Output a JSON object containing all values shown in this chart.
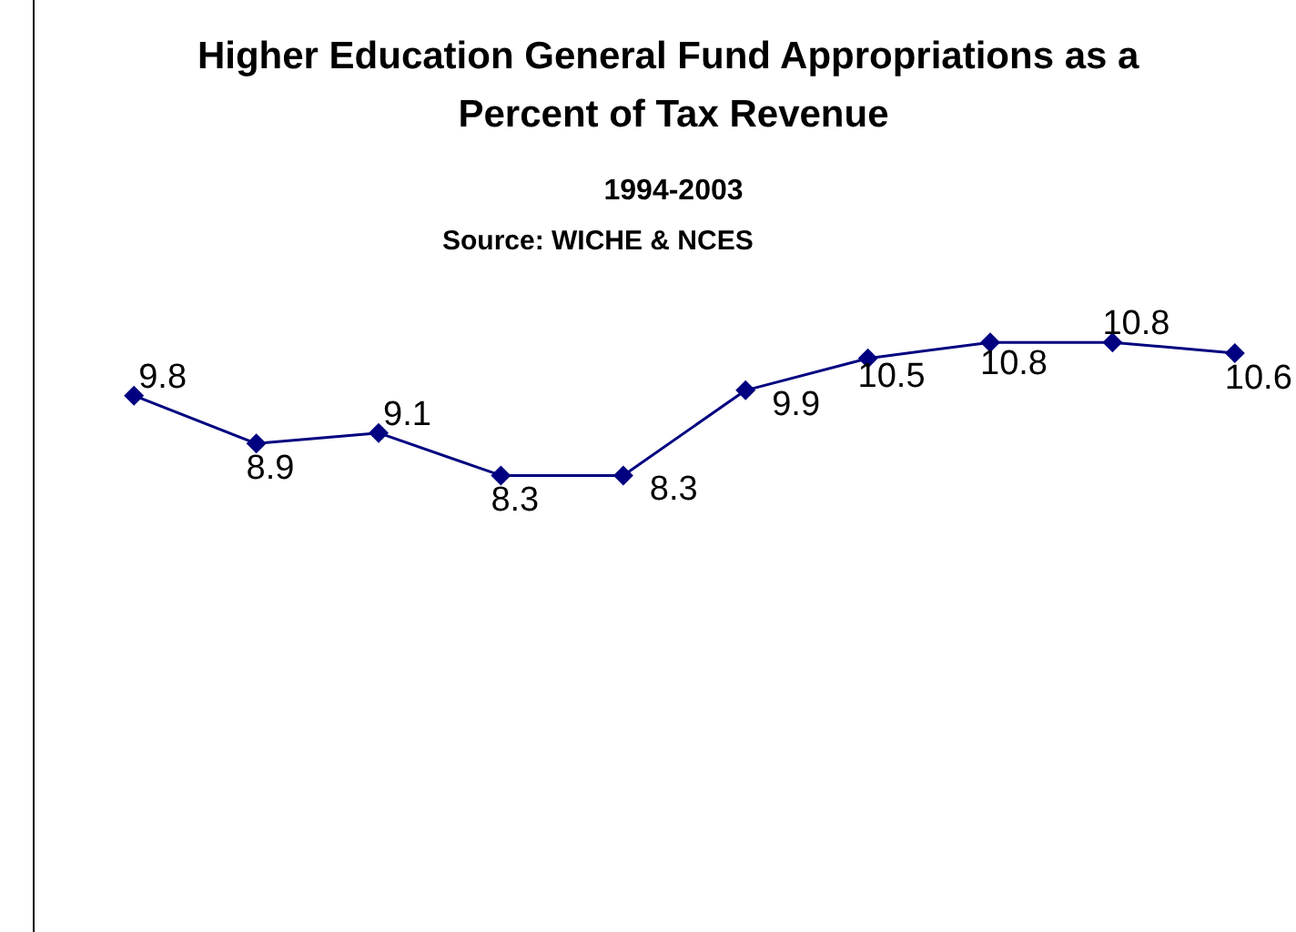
{
  "chart_data": {
    "type": "line",
    "title": "Higher Education General Fund Appropriations as a Percent of Tax Revenue",
    "subtitle": "1994-2003",
    "annotations": [
      "Source: WICHE & NCES"
    ],
    "categories": [
      null,
      null,
      null,
      null,
      null,
      null,
      null,
      null,
      null,
      null
    ],
    "series": [
      {
        "color": "#000080",
        "values": [
          9.8,
          8.9,
          9.1,
          8.3,
          8.3,
          9.9,
          10.5,
          10.8,
          10.8,
          10.6
        ]
      }
    ],
    "marker": "diamond",
    "line_style": "solid",
    "data_labels": true
  }
}
